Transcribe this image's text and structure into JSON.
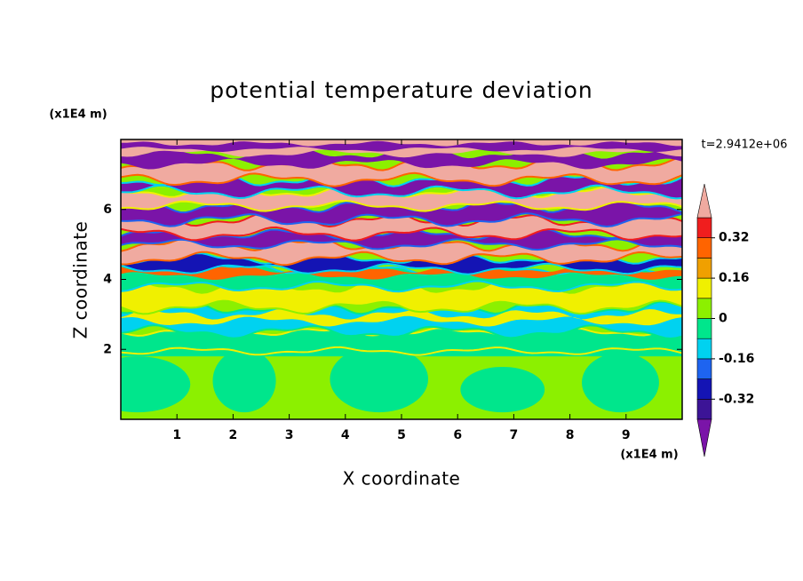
{
  "chart_data": {
    "type": "contour",
    "title": "potential temperature deviation",
    "xlabel": "X coordinate",
    "ylabel": "Z coordinate",
    "x_unit": "(x1E4 m)",
    "y_unit": "(x1E4 m)",
    "time_label": "t=2.9412e+06",
    "xlim": [
      0,
      10
    ],
    "ylim": [
      0,
      8
    ],
    "xticks": [
      1,
      2,
      3,
      4,
      5,
      6,
      7,
      8,
      9
    ],
    "yticks": [
      2,
      4,
      6
    ],
    "colorbar": {
      "levels": [
        -0.4,
        -0.32,
        -0.24,
        -0.16,
        -0.08,
        0,
        0.08,
        0.16,
        0.24,
        0.32,
        0.4
      ],
      "colors": [
        "#7a14a8",
        "#3c1496",
        "#1414b4",
        "#1e64f0",
        "#00d2f0",
        "#00e68c",
        "#8cf000",
        "#f0f000",
        "#f0a000",
        "#ff6400",
        "#f01e1e",
        "#f0aaa0"
      ],
      "ticks": [
        -0.32,
        -0.16,
        0,
        0.16,
        0.32
      ]
    }
  }
}
